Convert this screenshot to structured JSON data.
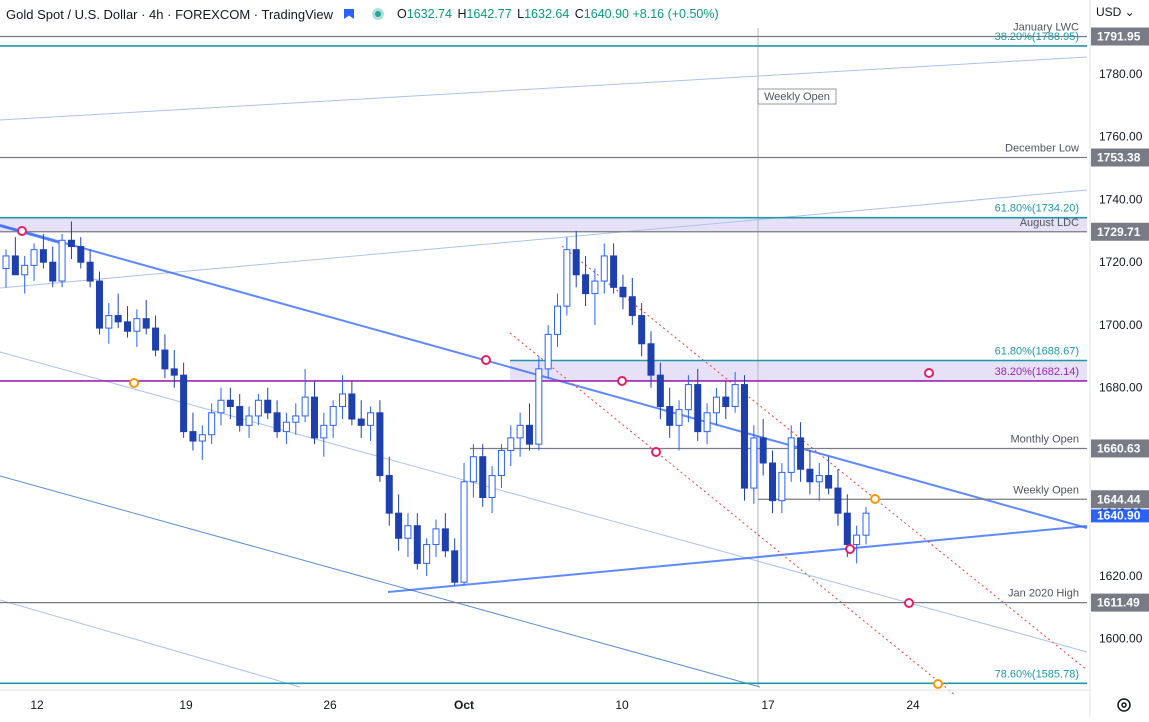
{
  "header": {
    "title": "Gold Spot / U.S. Dollar · 4h · FOREXCOM · TradingView",
    "open_label": "O",
    "open": "1632.74",
    "high_label": "H",
    "high": "1642.77",
    "low_label": "L",
    "low": "1632.64",
    "close_label": "C",
    "close": "1640.90",
    "change": "+8.16 (+0.50%)"
  },
  "currency": "USD",
  "colors": {
    "up": "#26a69a",
    "candle_dark": "#1e40af",
    "candle": "#2962ff",
    "fib_teal": "#2196a6",
    "magenta": "#9c27b0",
    "gray": "#787b86",
    "zone": "#e1d9f5",
    "channel": "#f44336",
    "marker_pink": "#e91e63",
    "marker_orange": "#ff9800"
  },
  "chart_data": {
    "type": "candlestick",
    "title": "Gold Spot / U.S. Dollar · 4h · FOREXCOM · TradingView",
    "y_axis": {
      "min": 1588,
      "max": 1800,
      "tick_labels": [
        "1780.00",
        "1760.00",
        "1740.00",
        "1720.00",
        "1700.00",
        "1680.00",
        "1660.00",
        "1640.00",
        "1620.00",
        "1600.00"
      ],
      "ticks": [
        1780,
        1760,
        1740,
        1720,
        1700,
        1680,
        1660,
        1640,
        1620,
        1600
      ]
    },
    "x_axis": {
      "tick_labels": [
        "12",
        "19",
        "26",
        "Oct",
        "10",
        "17",
        "24"
      ]
    },
    "levels": [
      {
        "name": "January LWC",
        "value": 1791.95,
        "badge": "1791.95",
        "label": "January LWC",
        "color": "gray"
      },
      {
        "name": "Fib 38.2%",
        "value": 1788.95,
        "badge": "",
        "label": "38.20%(1788.95)",
        "color": "fib_teal"
      },
      {
        "name": "December Low",
        "value": 1753.38,
        "badge": "1753.38",
        "label": "December Low",
        "color": "gray"
      },
      {
        "name": "Fib 61.8%",
        "value": 1734.2,
        "badge": "",
        "label": "61.80%(1734.20)",
        "color": "fib_teal"
      },
      {
        "name": "August LDC",
        "value": 1729.71,
        "badge": "1729.71",
        "label": "August LDC",
        "color": "gray"
      },
      {
        "name": "Fib 61.8% b",
        "value": 1688.67,
        "badge": "",
        "label": "61.80%(1688.67)",
        "color": "fib_teal"
      },
      {
        "name": "Fib 38.2% b",
        "value": 1682.14,
        "badge": "",
        "label": "38.20%(1682.14)",
        "color": "magenta"
      },
      {
        "name": "Monthly Open",
        "value": 1660.63,
        "badge": "1660.63",
        "label": "Monthly Open",
        "color": "gray"
      },
      {
        "name": "Weekly Open",
        "value": 1644.44,
        "badge": "1644.44",
        "label": "Weekly Open",
        "color": "gray"
      },
      {
        "name": "Jan 2020 High",
        "value": 1611.49,
        "badge": "1611.49",
        "label": "Jan 2020 High",
        "color": "gray"
      },
      {
        "name": "Fib 78.6%",
        "value": 1585.78,
        "badge": "",
        "label": "78.60%(1585.78)",
        "color": "fib_teal"
      }
    ],
    "last_price": "1640.90",
    "annotations": [
      "Weekly Open"
    ],
    "candles": [
      [
        1718,
        1724,
        1712,
        1722
      ],
      [
        1722,
        1728,
        1716,
        1716
      ],
      [
        1716,
        1722,
        1710,
        1719
      ],
      [
        1719,
        1726,
        1714,
        1724
      ],
      [
        1724,
        1729,
        1718,
        1720
      ],
      [
        1720,
        1725,
        1712,
        1714
      ],
      [
        1714,
        1729,
        1712,
        1727
      ],
      [
        1727,
        1733,
        1721,
        1725
      ],
      [
        1725,
        1728,
        1718,
        1720
      ],
      [
        1720,
        1724,
        1712,
        1714
      ],
      [
        1714,
        1717,
        1697,
        1699
      ],
      [
        1699,
        1707,
        1694,
        1703
      ],
      [
        1703,
        1710,
        1699,
        1701
      ],
      [
        1701,
        1706,
        1696,
        1698
      ],
      [
        1698,
        1705,
        1693,
        1702
      ],
      [
        1702,
        1708,
        1697,
        1699
      ],
      [
        1699,
        1703,
        1690,
        1692
      ],
      [
        1692,
        1697,
        1683,
        1686
      ],
      [
        1686,
        1692,
        1680,
        1684
      ],
      [
        1684,
        1688,
        1664,
        1666
      ],
      [
        1666,
        1672,
        1660,
        1663
      ],
      [
        1663,
        1668,
        1657,
        1665
      ],
      [
        1665,
        1675,
        1662,
        1672
      ],
      [
        1672,
        1680,
        1668,
        1676
      ],
      [
        1676,
        1680,
        1670,
        1674
      ],
      [
        1674,
        1678,
        1666,
        1668
      ],
      [
        1668,
        1674,
        1664,
        1671
      ],
      [
        1671,
        1678,
        1668,
        1676
      ],
      [
        1676,
        1680,
        1670,
        1672
      ],
      [
        1672,
        1676,
        1664,
        1666
      ],
      [
        1666,
        1672,
        1662,
        1669
      ],
      [
        1669,
        1675,
        1665,
        1671
      ],
      [
        1671,
        1686,
        1669,
        1677
      ],
      [
        1677,
        1682,
        1662,
        1664
      ],
      [
        1664,
        1672,
        1658,
        1668
      ],
      [
        1668,
        1676,
        1664,
        1674
      ],
      [
        1674,
        1684,
        1670,
        1678
      ],
      [
        1678,
        1682,
        1668,
        1670
      ],
      [
        1670,
        1676,
        1664,
        1668
      ],
      [
        1668,
        1674,
        1663,
        1672
      ],
      [
        1672,
        1676,
        1650,
        1652
      ],
      [
        1652,
        1658,
        1636,
        1640
      ],
      [
        1640,
        1646,
        1628,
        1632
      ],
      [
        1632,
        1640,
        1626,
        1636
      ],
      [
        1636,
        1640,
        1622,
        1624
      ],
      [
        1624,
        1632,
        1620,
        1630
      ],
      [
        1630,
        1638,
        1626,
        1635
      ],
      [
        1635,
        1640,
        1626,
        1628
      ],
      [
        1628,
        1632,
        1617,
        1618
      ],
      [
        1618,
        1656,
        1617,
        1650
      ],
      [
        1650,
        1662,
        1645,
        1658
      ],
      [
        1658,
        1662,
        1642,
        1645
      ],
      [
        1645,
        1655,
        1640,
        1652
      ],
      [
        1652,
        1662,
        1648,
        1660
      ],
      [
        1660,
        1668,
        1655,
        1664
      ],
      [
        1664,
        1672,
        1658,
        1668
      ],
      [
        1668,
        1675,
        1660,
        1662
      ],
      [
        1662,
        1690,
        1660,
        1686
      ],
      [
        1686,
        1700,
        1683,
        1697
      ],
      [
        1697,
        1710,
        1693,
        1706
      ],
      [
        1706,
        1728,
        1703,
        1724
      ],
      [
        1724,
        1730,
        1712,
        1716
      ],
      [
        1716,
        1722,
        1706,
        1710
      ],
      [
        1710,
        1718,
        1700,
        1714
      ],
      [
        1714,
        1726,
        1710,
        1722
      ],
      [
        1722,
        1726,
        1710,
        1712
      ],
      [
        1712,
        1716,
        1705,
        1709
      ],
      [
        1709,
        1715,
        1700,
        1703
      ],
      [
        1703,
        1707,
        1690,
        1694
      ],
      [
        1694,
        1698,
        1680,
        1684
      ],
      [
        1684,
        1688,
        1670,
        1674
      ],
      [
        1674,
        1680,
        1664,
        1668
      ],
      [
        1668,
        1676,
        1660,
        1673
      ],
      [
        1673,
        1684,
        1669,
        1681
      ],
      [
        1681,
        1686,
        1663,
        1666
      ],
      [
        1666,
        1675,
        1662,
        1672
      ],
      [
        1672,
        1680,
        1668,
        1677
      ],
      [
        1677,
        1682,
        1670,
        1674
      ],
      [
        1674,
        1685,
        1672,
        1681
      ],
      [
        1681,
        1684,
        1644,
        1648
      ],
      [
        1648,
        1668,
        1643,
        1664
      ],
      [
        1664,
        1670,
        1652,
        1656
      ],
      [
        1656,
        1660,
        1640,
        1644
      ],
      [
        1644,
        1656,
        1640,
        1653
      ],
      [
        1653,
        1668,
        1650,
        1664
      ],
      [
        1664,
        1669,
        1650,
        1654
      ],
      [
        1654,
        1660,
        1646,
        1650
      ],
      [
        1650,
        1656,
        1644,
        1652
      ],
      [
        1652,
        1658,
        1646,
        1648
      ],
      [
        1648,
        1654,
        1636,
        1640
      ],
      [
        1640,
        1646,
        1626,
        1630
      ],
      [
        1630,
        1636,
        1624,
        1633
      ],
      [
        1633,
        1642,
        1630,
        1640
      ]
    ]
  }
}
